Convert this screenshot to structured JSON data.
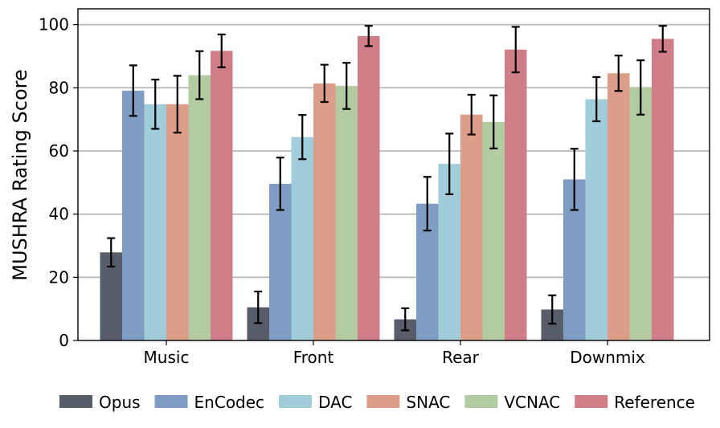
{
  "chart_data": {
    "type": "bar",
    "title": "",
    "xlabel": "",
    "ylabel": "MUSHRA Rating Score",
    "ylim": [
      0,
      105
    ],
    "yticks": [
      0,
      20,
      40,
      60,
      80,
      100
    ],
    "grid": "horizontal",
    "legend_position": "bottom",
    "categories": [
      "Music",
      "Front",
      "Rear",
      "Downmix"
    ],
    "series": [
      {
        "name": "Opus",
        "color": "#585e69",
        "values": [
          27.9,
          10.5,
          6.7,
          9.8
        ],
        "errors": [
          4.5,
          5.0,
          3.5,
          4.5
        ]
      },
      {
        "name": "EnCodec",
        "color": "#7f9dc2",
        "values": [
          79.1,
          49.6,
          43.3,
          51.0
        ],
        "errors": [
          8.0,
          8.3,
          8.5,
          9.7
        ]
      },
      {
        "name": "DAC",
        "color": "#a1ccda",
        "values": [
          74.8,
          64.4,
          55.9,
          76.4
        ],
        "errors": [
          7.8,
          7.0,
          9.6,
          7.0
        ]
      },
      {
        "name": "SNAC",
        "color": "#dc9e88",
        "values": [
          74.8,
          81.4,
          71.5,
          84.6
        ],
        "errors": [
          9.0,
          5.9,
          6.3,
          5.6
        ]
      },
      {
        "name": "VCNAC",
        "color": "#b2cba0",
        "values": [
          84.0,
          80.6,
          69.2,
          80.1
        ],
        "errors": [
          7.6,
          7.3,
          8.4,
          8.6
        ]
      },
      {
        "name": "Reference",
        "color": "#cf7e87",
        "values": [
          91.7,
          96.4,
          92.1,
          95.5
        ],
        "errors": [
          5.2,
          3.2,
          7.2,
          4.1
        ]
      }
    ]
  }
}
